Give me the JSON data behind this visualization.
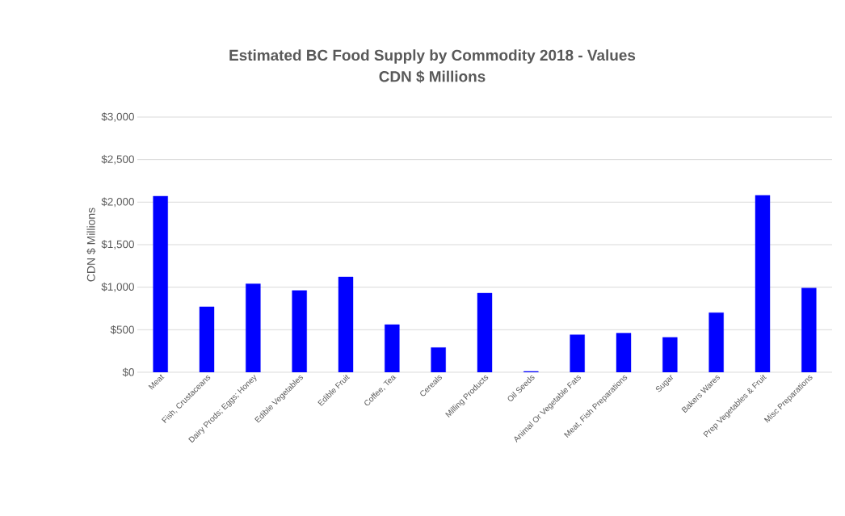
{
  "chart_data": {
    "type": "bar",
    "title": "Estimated BC Food Supply by Commodity 2018 - Values",
    "subtitle": "CDN $ Millions",
    "ylabel": "CDN $ Millions",
    "categories": [
      "Meat",
      "Fish, Crustaceans",
      "Dairy Prods; Eggs; Honey",
      "Edible Vegetables",
      "Edible Fruit",
      "Coffee, Tea",
      "Cereals",
      "Milling Products",
      "Oil Seeds",
      "Animal Or Vegetable Fats",
      "Meat, Fish Preparations",
      "Sugar",
      "Bakers Wares",
      "Prep Vegetables & Fruit",
      "Misc Preparations"
    ],
    "values": [
      2070,
      770,
      1040,
      960,
      1120,
      560,
      290,
      930,
      10,
      440,
      460,
      410,
      700,
      2080,
      990
    ],
    "color": "#0000ff",
    "ylim": [
      0,
      3000
    ],
    "yticks": [
      {
        "value": 0,
        "label": "$0"
      },
      {
        "value": 500,
        "label": "$500"
      },
      {
        "value": 1000,
        "label": "$1,000"
      },
      {
        "value": 1500,
        "label": "$1,500"
      },
      {
        "value": 2000,
        "label": "$2,000"
      },
      {
        "value": 2500,
        "label": "$2,500"
      },
      {
        "value": 3000,
        "label": "$3,000"
      }
    ],
    "grid": "y"
  }
}
